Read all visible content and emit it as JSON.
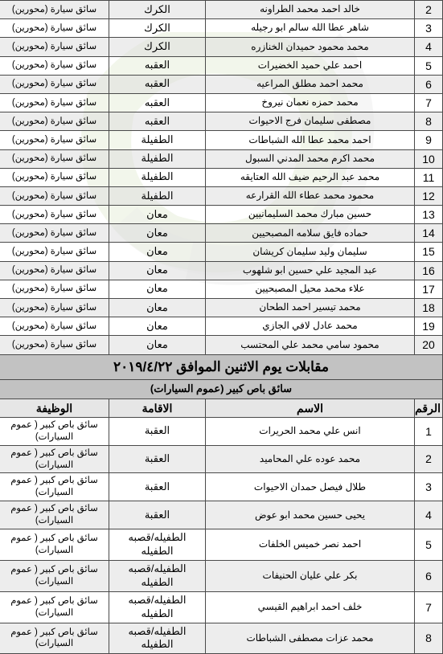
{
  "table1": {
    "start_num": 2,
    "rows": [
      {
        "name": "خالد احمد محمد الطراونه",
        "loc": "الكرك",
        "job": "سائق سيارة (محورين)"
      },
      {
        "name": "شاهر عطا الله سالم ابو رجيله",
        "loc": "الكرك",
        "job": "سائق سيارة (محورين)"
      },
      {
        "name": "محمد محمود حميدان الخنازره",
        "loc": "الكرك",
        "job": "سائق سيارة (محورين)"
      },
      {
        "name": "احمد علي حميد الخضيرات",
        "loc": "العقبه",
        "job": "سائق سيارة (محورين)"
      },
      {
        "name": "محمد احمد مطلق المراعيه",
        "loc": "العقبه",
        "job": "سائق سيارة (محورين)"
      },
      {
        "name": "محمد حمزه نعمان نيروخ",
        "loc": "العقبه",
        "job": "سائق سيارة (محورين)"
      },
      {
        "name": "مصطفى سليمان فرج الاحيوات",
        "loc": "العقبه",
        "job": "سائق سيارة (محورين)"
      },
      {
        "name": "احمد محمد عطا الله الشباطات",
        "loc": "الطفيلة",
        "job": "سائق سيارة (محورين)"
      },
      {
        "name": "محمد اكرم محمد المدني السبول",
        "loc": "الطفيلة",
        "job": "سائق سيارة (محورين)"
      },
      {
        "name": "محمد عبد الرحيم ضيف الله العتايقه",
        "loc": "الطفيلة",
        "job": "سائق سيارة (محورين)"
      },
      {
        "name": "محمود محمد عطاء الله القرارعه",
        "loc": "الطفيلة",
        "job": "سائق سيارة (محورين)"
      },
      {
        "name": "حسين مبارك محمد السليمانيين",
        "loc": "معان",
        "job": "سائق سيارة (محورين)"
      },
      {
        "name": "حماده فايق سلامه المصبحيين",
        "loc": "معان",
        "job": "سائق سيارة (محورين)"
      },
      {
        "name": "سليمان وليد سليمان كريشان",
        "loc": "معان",
        "job": "سائق سيارة (محورين)"
      },
      {
        "name": "عبد المجيد علي حسين ابو شلهوب",
        "loc": "معان",
        "job": "سائق سيارة (محورين)"
      },
      {
        "name": "علاء محمد محيل المصبحيين",
        "loc": "معان",
        "job": "سائق سيارة (محورين)"
      },
      {
        "name": "محمد تيسير احمد الطحان",
        "loc": "معان",
        "job": "سائق سيارة (محورين)"
      },
      {
        "name": "محمد عادل لافي الجازي",
        "loc": "معان",
        "job": "سائق سيارة (محورين)"
      },
      {
        "name": "محمود سامي محمد علي المحتسب",
        "loc": "معان",
        "job": "سائق سيارة (محورين)"
      }
    ]
  },
  "section2": {
    "title": "مقابلات يوم الاثنين  الموافق ٢٠١٩/٤/٢٢",
    "subtitle": "سائق باص كبير (عموم السيارات)",
    "headers": {
      "num": "الرقم",
      "name": "الاسم",
      "loc": "الاقامة",
      "job": "الوظيفة"
    },
    "rows": [
      {
        "name": "انس علي محمد الحريرات",
        "loc": "العقبة",
        "job": "سائق باص كبير ( عموم السيارات)"
      },
      {
        "name": "محمد عوده علي المحاميد",
        "loc": "العقبة",
        "job": "سائق باص كبير ( عموم السيارات)"
      },
      {
        "name": "طلال فيصل حمدان الاحيوات",
        "loc": "العقبة",
        "job": "سائق باص كبير ( عموم السيارات)"
      },
      {
        "name": "يحيى حسين محمد ابو عوض",
        "loc": "العقبة",
        "job": "سائق باص كبير ( عموم السيارات)"
      },
      {
        "name": "احمد نصر خميس الخلفات",
        "loc": "الطفيله/قصبه الطفيله",
        "job": "سائق باص كبير ( عموم السيارات)"
      },
      {
        "name": "بكر علي عليان الحنيفات",
        "loc": "الطفيله/قصبه الطفيله",
        "job": "سائق باص كبير ( عموم السيارات)"
      },
      {
        "name": "خلف احمد ابراهيم القيسي",
        "loc": "الطفيله/قصبه الطفيله",
        "job": "سائق باص كبير ( عموم السيارات)"
      },
      {
        "name": "محمد عزات مصطفى الشباطات",
        "loc": "الطفيله/قصبه الطفيله",
        "job": "سائق باص كبير ( عموم السيارات)"
      }
    ]
  }
}
